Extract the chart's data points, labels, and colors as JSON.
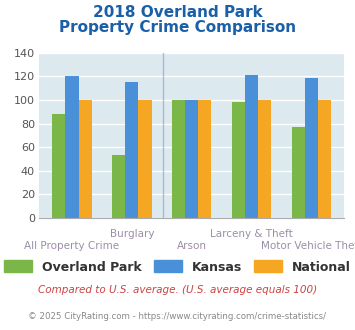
{
  "title_line1": "2018 Overland Park",
  "title_line2": "Property Crime Comparison",
  "groups": [
    "All Property Crime",
    "Burglary",
    "Arson",
    "Larceny & Theft",
    "Motor Vehicle Theft"
  ],
  "series": {
    "Overland Park": [
      88,
      53,
      100,
      98,
      77
    ],
    "Kansas": [
      120,
      115,
      100,
      121,
      119
    ],
    "National": [
      100,
      100,
      100,
      100,
      100
    ]
  },
  "colors": {
    "Overland Park": "#7ab648",
    "Kansas": "#4a90d9",
    "National": "#f5a623"
  },
  "ylim": [
    0,
    140
  ],
  "yticks": [
    0,
    20,
    40,
    60,
    80,
    100,
    120,
    140
  ],
  "grid_color": "#ffffff",
  "bg_color": "#dce9ef",
  "title_color": "#1a5fa8",
  "xlabel_color": "#9b8ea8",
  "legend_fontsize": 9,
  "footnote1": "Compared to U.S. average. (U.S. average equals 100)",
  "footnote2": "© 2025 CityRating.com - https://www.cityrating.com/crime-statistics/",
  "footnote1_color": "#cc4444",
  "footnote2_color": "#888888",
  "bar_width": 0.22,
  "group_positions": [
    0.75,
    1.75,
    2.75,
    3.75,
    4.75
  ],
  "xlim": [
    0.2,
    5.3
  ]
}
